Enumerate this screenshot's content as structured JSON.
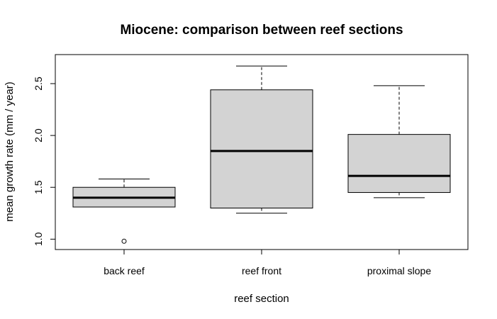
{
  "chart_data": {
    "type": "boxplot",
    "title": "Miocene: comparison between reef sections",
    "xlabel": "reef section",
    "ylabel": "mean growth rate (mm / year)",
    "ylim": [
      0.9,
      2.78
    ],
    "yticks": [
      "1.0",
      "1.5",
      "2.0",
      "2.5"
    ],
    "categories": [
      "back reef",
      "reef front",
      "proximal slope"
    ],
    "boxes": [
      {
        "name": "back reef",
        "whisker_low": 1.31,
        "q1": 1.31,
        "median": 1.4,
        "q3": 1.5,
        "whisker_high": 1.58,
        "outliers": [
          0.98
        ]
      },
      {
        "name": "reef front",
        "whisker_low": 1.25,
        "q1": 1.3,
        "median": 1.85,
        "q3": 2.44,
        "whisker_high": 2.67,
        "outliers": []
      },
      {
        "name": "proximal slope",
        "whisker_low": 1.4,
        "q1": 1.45,
        "median": 1.61,
        "q3": 2.01,
        "whisker_high": 2.48,
        "outliers": []
      }
    ],
    "box_fill": "#d3d3d3",
    "grid": false
  }
}
